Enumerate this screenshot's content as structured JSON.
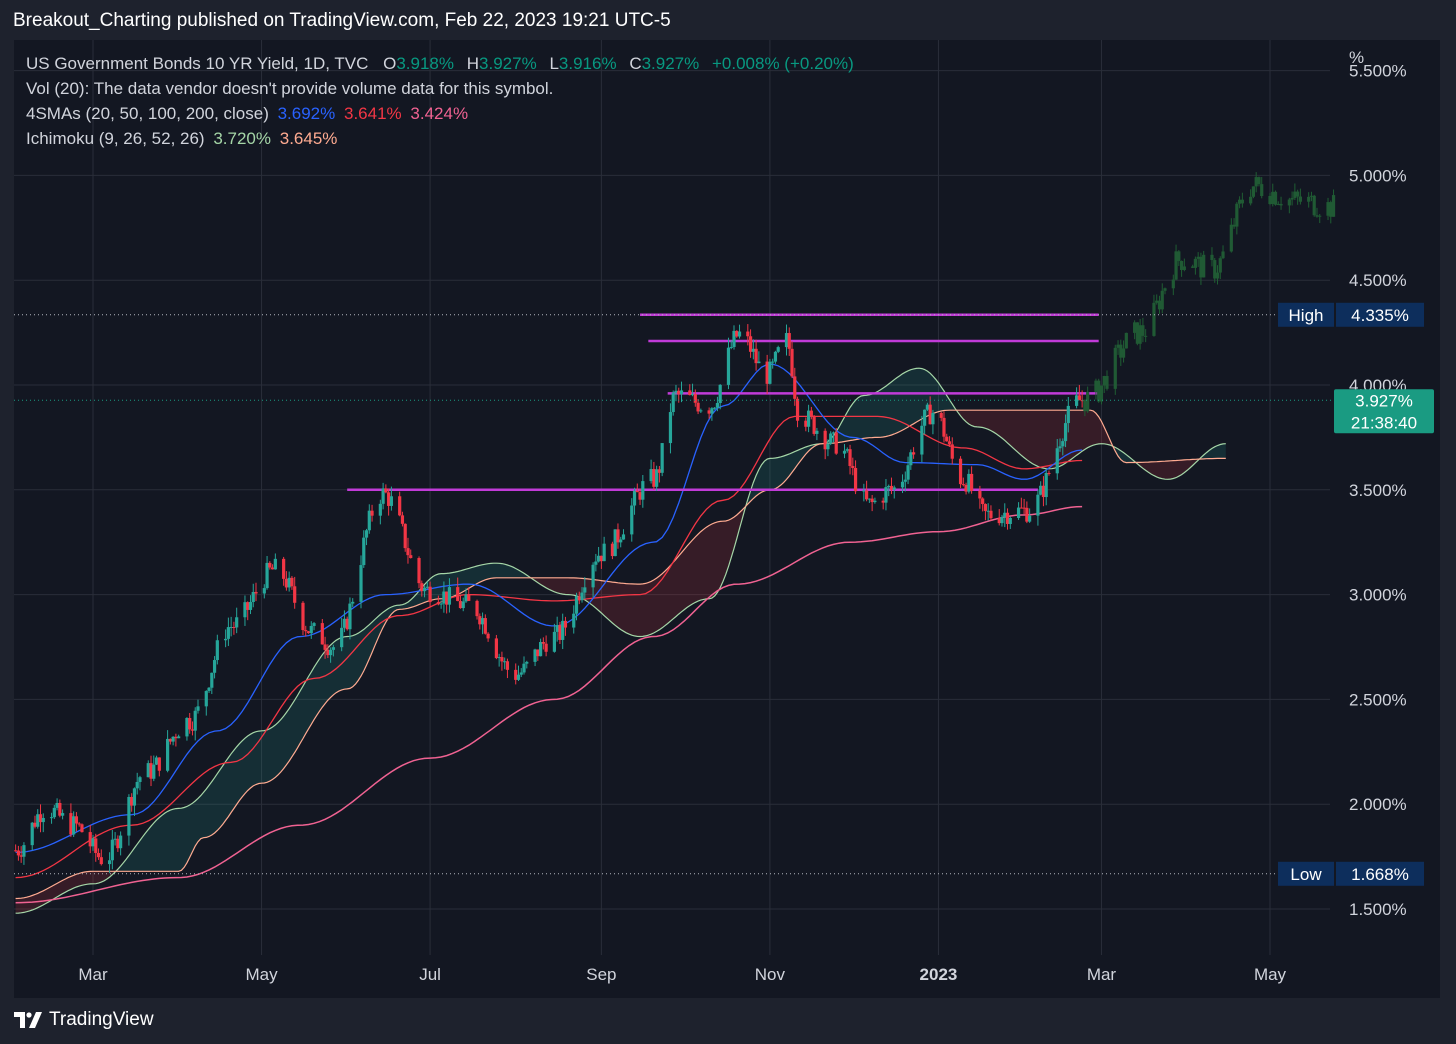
{
  "header": {
    "title": "Breakout_Charting published on TradingView.com, Feb 22, 2023 19:21 UTC-5"
  },
  "legend": {
    "symbol": "US Government Bonds 10 YR Yield, 1D, TVC",
    "ohlc": {
      "o_label": "O",
      "o": "3.918%",
      "h_label": "H",
      "h": "3.927%",
      "l_label": "L",
      "l": "3.916%",
      "c_label": "C",
      "c": "3.927%",
      "change": "+0.008% (+0.20%)"
    },
    "vol": "Vol (20): The data vendor doesn't provide volume data for this symbol.",
    "sma": {
      "label": "4SMAs (20, 50, 100, 200, close)",
      "v1": "3.692%",
      "v2": "3.641%",
      "v3": "3.424%"
    },
    "ichimoku": {
      "label": "Ichimoku (9, 26, 52, 26)",
      "v1": "3.720%",
      "v2": "3.645%"
    }
  },
  "brand": {
    "name": "TradingView"
  },
  "axis": {
    "unit": "%"
  },
  "colors": {
    "up": "#26a69a",
    "down": "#f23645",
    "sma20": "#2962ff",
    "sma50": "#f23645",
    "sma200": "#f06292",
    "tenkan": "#a5d6a7",
    "kijun": "#ffab91",
    "hline": "#c13bd8",
    "badge": "#0d2e5c",
    "last": "#1a9b82"
  },
  "chart_data": {
    "type": "candlestick",
    "title": "US Government Bonds 10 YR Yield, 1D, TVC",
    "y_unit": "%",
    "ylim": [
      1.3,
      5.5
    ],
    "y_ticks": [
      "1.500%",
      "2.000%",
      "2.500%",
      "3.000%",
      "3.500%",
      "4.000%",
      "4.500%",
      "5.000%",
      "5.500%"
    ],
    "x_ticks": [
      "Mar",
      "May",
      "Jul",
      "Sep",
      "Nov",
      "2023",
      "Mar",
      "May"
    ],
    "x_range": [
      "2022-02-01",
      "2023-05-31"
    ],
    "grid": true,
    "anchors": [
      [
        "2022-02-01",
        1.78
      ],
      [
        "2022-02-12",
        1.98
      ],
      [
        "2022-02-22",
        1.9
      ],
      [
        "2022-03-05",
        1.74
      ],
      [
        "2022-03-20",
        2.15
      ],
      [
        "2022-04-05",
        2.4
      ],
      [
        "2022-04-20",
        2.85
      ],
      [
        "2022-05-06",
        3.12
      ],
      [
        "2022-05-20",
        2.82
      ],
      [
        "2022-05-27",
        2.75
      ],
      [
        "2022-06-14",
        3.48
      ],
      [
        "2022-06-30",
        3.02
      ],
      [
        "2022-07-15",
        2.95
      ],
      [
        "2022-08-01",
        2.62
      ],
      [
        "2022-08-15",
        2.8
      ],
      [
        "2022-09-01",
        3.2
      ],
      [
        "2022-09-20",
        3.55
      ],
      [
        "2022-09-28",
        3.95
      ],
      [
        "2022-10-10",
        3.9
      ],
      [
        "2022-10-21",
        4.24
      ],
      [
        "2022-10-31",
        4.05
      ],
      [
        "2022-11-07",
        4.21
      ],
      [
        "2022-11-12",
        3.85
      ],
      [
        "2022-11-25",
        3.72
      ],
      [
        "2022-12-07",
        3.43
      ],
      [
        "2022-12-15",
        3.5
      ],
      [
        "2022-12-30",
        3.87
      ],
      [
        "2023-01-10",
        3.55
      ],
      [
        "2023-01-18",
        3.38
      ],
      [
        "2023-02-02",
        3.4
      ],
      [
        "2023-02-22",
        3.93
      ]
    ],
    "last_close": 3.927,
    "indicators": {
      "sma20": [
        [
          "2022-02-01",
          1.77
        ],
        [
          "2022-03-15",
          1.95
        ],
        [
          "2022-04-15",
          2.35
        ],
        [
          "2022-05-15",
          2.8
        ],
        [
          "2022-06-15",
          3.0
        ],
        [
          "2022-07-15",
          3.05
        ],
        [
          "2022-08-15",
          2.85
        ],
        [
          "2022-09-20",
          3.25
        ],
        [
          "2022-10-15",
          3.9
        ],
        [
          "2022-11-01",
          4.1
        ],
        [
          "2022-12-01",
          3.75
        ],
        [
          "2022-12-20",
          3.63
        ],
        [
          "2023-01-15",
          3.62
        ],
        [
          "2023-02-01",
          3.55
        ],
        [
          "2023-02-22",
          3.69
        ]
      ],
      "sma50": [
        [
          "2022-02-01",
          1.65
        ],
        [
          "2022-03-15",
          1.9
        ],
        [
          "2022-04-20",
          2.2
        ],
        [
          "2022-05-20",
          2.6
        ],
        [
          "2022-06-20",
          2.9
        ],
        [
          "2022-07-15",
          3.0
        ],
        [
          "2022-08-15",
          2.97
        ],
        [
          "2022-09-15",
          3.0
        ],
        [
          "2022-10-15",
          3.45
        ],
        [
          "2022-11-10",
          3.85
        ],
        [
          "2022-12-10",
          3.85
        ],
        [
          "2023-01-10",
          3.7
        ],
        [
          "2023-02-01",
          3.6
        ],
        [
          "2023-02-22",
          3.64
        ]
      ],
      "sma200": [
        [
          "2022-02-01",
          1.53
        ],
        [
          "2022-04-01",
          1.65
        ],
        [
          "2022-05-15",
          1.9
        ],
        [
          "2022-07-01",
          2.22
        ],
        [
          "2022-08-15",
          2.5
        ],
        [
          "2022-09-20",
          2.8
        ],
        [
          "2022-10-20",
          3.05
        ],
        [
          "2022-11-30",
          3.25
        ],
        [
          "2023-01-01",
          3.3
        ],
        [
          "2023-02-01",
          3.38
        ],
        [
          "2023-02-22",
          3.42
        ]
      ],
      "span_a": [
        [
          "2022-02-01",
          1.48
        ],
        [
          "2022-03-01",
          1.62
        ],
        [
          "2022-04-01",
          1.98
        ],
        [
          "2022-05-01",
          2.35
        ],
        [
          "2022-06-01",
          2.8
        ],
        [
          "2022-06-20",
          2.95
        ],
        [
          "2022-07-05",
          3.1
        ],
        [
          "2022-07-25",
          3.15
        ],
        [
          "2022-08-20",
          3.0
        ],
        [
          "2022-09-15",
          2.8
        ],
        [
          "2022-10-10",
          2.98
        ],
        [
          "2022-11-01",
          3.65
        ],
        [
          "2022-11-20",
          3.72
        ],
        [
          "2022-12-05",
          3.95
        ],
        [
          "2022-12-25",
          4.08
        ],
        [
          "2023-01-15",
          3.8
        ],
        [
          "2023-02-10",
          3.6
        ],
        [
          "2023-03-01",
          3.72
        ],
        [
          "2023-03-25",
          3.55
        ],
        [
          "2023-04-15",
          3.72
        ]
      ],
      "span_b": [
        [
          "2022-02-01",
          1.55
        ],
        [
          "2022-03-01",
          1.68
        ],
        [
          "2022-04-01",
          1.68
        ],
        [
          "2022-04-10",
          1.84
        ],
        [
          "2022-05-01",
          2.1
        ],
        [
          "2022-06-01",
          2.55
        ],
        [
          "2022-06-20",
          2.93
        ],
        [
          "2022-07-05",
          2.98
        ],
        [
          "2022-07-25",
          3.08
        ],
        [
          "2022-08-20",
          3.08
        ],
        [
          "2022-09-15",
          3.05
        ],
        [
          "2022-10-15",
          3.35
        ],
        [
          "2022-11-01",
          3.5
        ],
        [
          "2022-11-20",
          3.72
        ],
        [
          "2022-12-10",
          3.75
        ],
        [
          "2023-01-05",
          3.88
        ],
        [
          "2023-02-01",
          3.88
        ],
        [
          "2023-02-25",
          3.88
        ],
        [
          "2023-03-10",
          3.63
        ],
        [
          "2023-04-15",
          3.65
        ]
      ],
      "forecast": [
        [
          "2023-02-23",
          3.93
        ],
        [
          "2023-03-15",
          4.25
        ],
        [
          "2023-03-30",
          4.6
        ],
        [
          "2023-04-10",
          4.55
        ],
        [
          "2023-04-25",
          4.95
        ],
        [
          "2023-05-10",
          4.88
        ],
        [
          "2023-05-24",
          4.85
        ]
      ]
    },
    "hlines": [
      {
        "from": "2022-09-15",
        "to": "2023-02-28",
        "value": 4.335
      },
      {
        "from": "2022-09-18",
        "to": "2023-02-28",
        "value": 4.21
      },
      {
        "from": "2022-09-25",
        "to": "2023-02-28",
        "value": 3.96
      },
      {
        "from": "2022-06-01",
        "to": "2023-02-06",
        "value": 3.5
      }
    ],
    "markers": [
      {
        "label": "High",
        "value": "4.335%",
        "v": 4.335
      },
      {
        "label": "Low",
        "value": "1.668%",
        "v": 1.668
      }
    ],
    "price_label": {
      "value": "3.927%",
      "countdown": "21:38:40"
    },
    "partial_top_tick": "5.500%"
  }
}
